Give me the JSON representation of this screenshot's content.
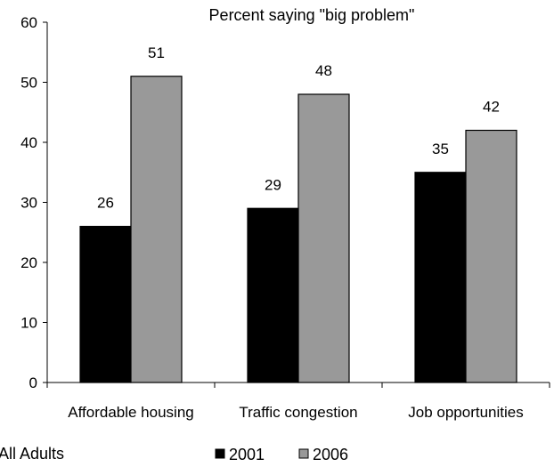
{
  "chart_data": {
    "type": "bar",
    "title": "Percent saying \"big problem\"",
    "categories": [
      "Affordable housing",
      "Traffic congestion",
      "Job opportunities"
    ],
    "series": [
      {
        "name": "2001",
        "values": [
          26,
          29,
          35
        ],
        "color": "#000000"
      },
      {
        "name": "2006",
        "values": [
          51,
          48,
          42
        ],
        "color": "#999999"
      }
    ],
    "ylim": [
      0,
      60
    ],
    "yticks": [
      0,
      10,
      20,
      30,
      40,
      50,
      60
    ],
    "xlabel": "",
    "ylabel": "",
    "grid": false,
    "legend_position": "bottom"
  },
  "footnote": "All Adults"
}
